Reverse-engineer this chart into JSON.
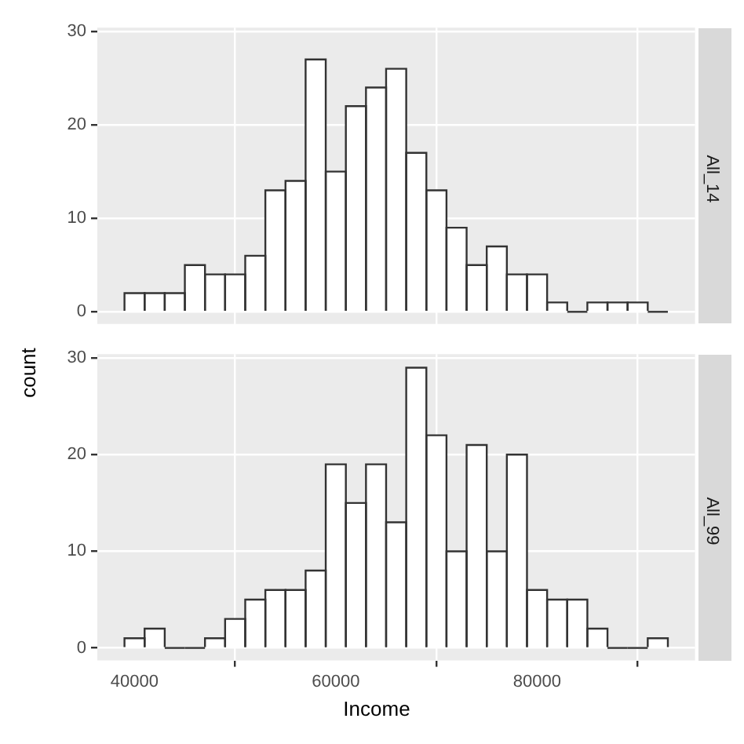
{
  "chart_data": [
    {
      "type": "histogram",
      "title": "All_14",
      "ylabel": "count",
      "color": "#ffffff",
      "bins": [
        39000,
        41000,
        43000,
        45000,
        47000,
        49000,
        51000,
        53000,
        55000,
        57000,
        59000,
        61000,
        63000,
        65000,
        67000,
        69000,
        71000,
        73000,
        75000,
        77000,
        79000,
        81000,
        83000,
        85000,
        87000,
        89000,
        91000,
        93000
      ],
      "values": [
        2,
        2,
        2,
        5,
        4,
        4,
        6,
        13,
        14,
        27,
        15,
        22,
        24,
        26,
        17,
        13,
        9,
        5,
        7,
        4,
        4,
        1,
        0,
        1,
        1,
        1,
        0
      ],
      "xlim": [
        36300,
        95700
      ],
      "ylim": [
        -1.3,
        30.4
      ],
      "xticks": [
        40000,
        60000,
        80000
      ],
      "yticks": [
        0,
        10,
        20,
        30
      ],
      "grid": true,
      "tick_labels": "y"
    },
    {
      "type": "histogram",
      "title": "All_99",
      "xlabel": "Income",
      "color": "#ffffff",
      "bins": [
        39000,
        41000,
        43000,
        45000,
        47000,
        49000,
        51000,
        53000,
        55000,
        57000,
        59000,
        61000,
        63000,
        65000,
        67000,
        69000,
        71000,
        73000,
        75000,
        77000,
        79000,
        81000,
        83000,
        85000,
        87000,
        89000,
        91000,
        93000
      ],
      "values": [
        1,
        2,
        0,
        0,
        1,
        3,
        5,
        6,
        6,
        8,
        19,
        15,
        19,
        13,
        29,
        22,
        10,
        21,
        10,
        20,
        6,
        5,
        5,
        2,
        0,
        0,
        1
      ],
      "xlim": [
        36300,
        95700
      ],
      "ylim": [
        -1.3,
        30.4
      ],
      "xticks": [
        40000,
        60000,
        80000
      ],
      "yticks": [
        0,
        10,
        20,
        30
      ],
      "grid": true
    }
  ]
}
